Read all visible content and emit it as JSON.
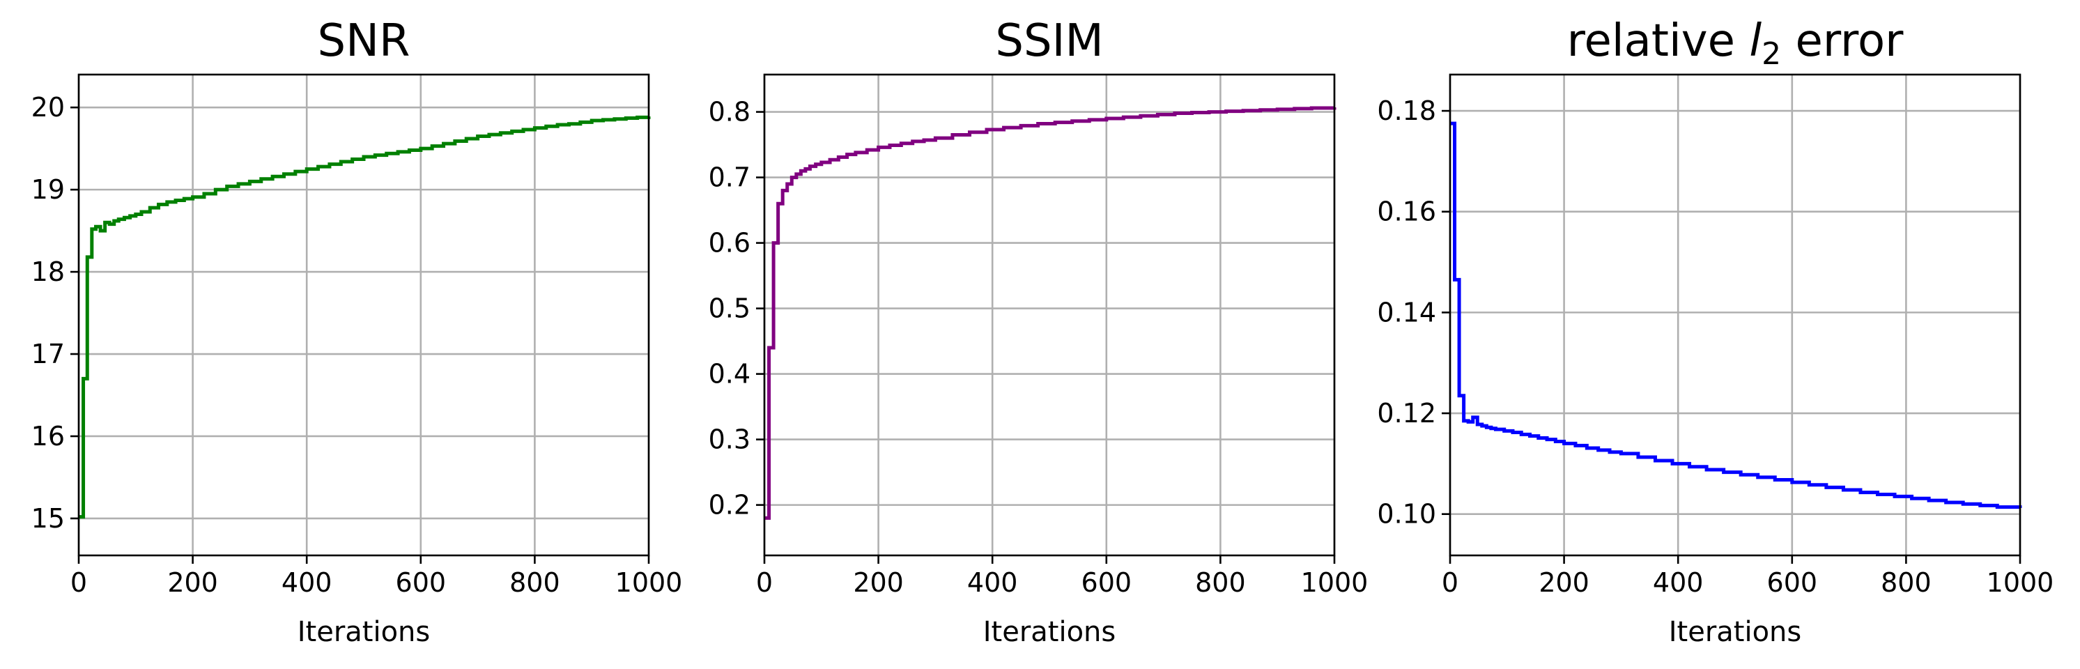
{
  "chart_data": [
    {
      "type": "line",
      "title": "SNR",
      "xlabel": "Iterations",
      "ylabel": "",
      "xlim": [
        0,
        1000
      ],
      "ylim": [
        14.55,
        20.4
      ],
      "xticks": [
        0,
        200,
        400,
        600,
        800,
        1000
      ],
      "yticks": [
        15,
        16,
        17,
        18,
        19,
        20
      ],
      "ytick_labels": [
        "15",
        "16",
        "17",
        "18",
        "19",
        "20"
      ],
      "grid": true,
      "series": [
        {
          "color": "#008000",
          "step": true,
          "x": [
            0,
            8,
            15,
            23,
            30,
            38,
            46,
            54,
            62,
            70,
            80,
            90,
            100,
            110,
            125,
            140,
            155,
            170,
            185,
            200,
            220,
            240,
            260,
            280,
            300,
            320,
            340,
            360,
            380,
            400,
            420,
            440,
            460,
            480,
            500,
            520,
            540,
            560,
            580,
            600,
            620,
            640,
            660,
            680,
            700,
            720,
            740,
            760,
            780,
            800,
            820,
            840,
            860,
            880,
            900,
            920,
            940,
            960,
            980,
            1000
          ],
          "y": [
            15.02,
            16.7,
            18.18,
            18.52,
            18.55,
            18.5,
            18.6,
            18.58,
            18.62,
            18.64,
            18.66,
            18.68,
            18.7,
            18.73,
            18.78,
            18.82,
            18.85,
            18.87,
            18.89,
            18.91,
            18.95,
            19.0,
            19.04,
            19.07,
            19.1,
            19.13,
            19.16,
            19.19,
            19.22,
            19.25,
            19.28,
            19.31,
            19.34,
            19.37,
            19.4,
            19.42,
            19.44,
            19.46,
            19.48,
            19.5,
            19.53,
            19.56,
            19.59,
            19.62,
            19.65,
            19.67,
            19.69,
            19.71,
            19.73,
            19.75,
            19.77,
            19.79,
            19.8,
            19.82,
            19.84,
            19.85,
            19.86,
            19.87,
            19.88,
            19.89
          ]
        }
      ]
    },
    {
      "type": "line",
      "title": "SSIM",
      "xlabel": "Iterations",
      "ylabel": "",
      "xlim": [
        0,
        1000
      ],
      "ylim": [
        0.123,
        0.857
      ],
      "xticks": [
        0,
        200,
        400,
        600,
        800,
        1000
      ],
      "yticks": [
        0.2,
        0.3,
        0.4,
        0.5,
        0.6,
        0.7,
        0.8
      ],
      "ytick_labels": [
        "0.2",
        "0.3",
        "0.4",
        "0.5",
        "0.6",
        "0.7",
        "0.8"
      ],
      "grid": true,
      "series": [
        {
          "color": "#800080",
          "step": true,
          "x": [
            0,
            8,
            16,
            24,
            32,
            40,
            48,
            56,
            64,
            72,
            80,
            90,
            100,
            115,
            130,
            145,
            160,
            180,
            200,
            220,
            240,
            260,
            280,
            300,
            330,
            360,
            390,
            420,
            450,
            480,
            510,
            540,
            570,
            600,
            630,
            660,
            690,
            720,
            750,
            780,
            810,
            840,
            870,
            900,
            930,
            960,
            1000
          ],
          "y": [
            0.18,
            0.44,
            0.6,
            0.66,
            0.68,
            0.69,
            0.7,
            0.705,
            0.71,
            0.713,
            0.717,
            0.72,
            0.723,
            0.727,
            0.731,
            0.735,
            0.738,
            0.742,
            0.746,
            0.749,
            0.752,
            0.755,
            0.757,
            0.76,
            0.765,
            0.769,
            0.773,
            0.776,
            0.779,
            0.782,
            0.784,
            0.786,
            0.788,
            0.79,
            0.792,
            0.794,
            0.796,
            0.798,
            0.799,
            0.8,
            0.801,
            0.802,
            0.803,
            0.804,
            0.805,
            0.806,
            0.807
          ]
        }
      ]
    },
    {
      "type": "line",
      "title": "relative",
      "title_var": "l",
      "title_sub": "2",
      "title_rest": "error",
      "xlabel": "Iterations",
      "ylabel": "",
      "xlim": [
        0,
        1000
      ],
      "ylim": [
        0.0918,
        0.1872
      ],
      "xticks": [
        0,
        200,
        400,
        600,
        800,
        1000
      ],
      "yticks": [
        0.1,
        0.12,
        0.14,
        0.16,
        0.18
      ],
      "ytick_labels": [
        "0.10",
        "0.12",
        "0.14",
        "0.16",
        "0.18"
      ],
      "grid": true,
      "series": [
        {
          "color": "#0000ff",
          "step": true,
          "x": [
            0,
            8,
            16,
            24,
            32,
            40,
            48,
            56,
            64,
            72,
            80,
            95,
            110,
            125,
            140,
            155,
            170,
            185,
            200,
            220,
            240,
            260,
            280,
            300,
            330,
            360,
            390,
            420,
            450,
            480,
            510,
            540,
            570,
            600,
            630,
            660,
            690,
            720,
            750,
            780,
            810,
            840,
            870,
            900,
            930,
            960,
            1000
          ],
          "y": [
            0.1775,
            0.1465,
            0.1235,
            0.1185,
            0.1183,
            0.1192,
            0.1178,
            0.1175,
            0.1172,
            0.117,
            0.1168,
            0.1165,
            0.1162,
            0.1158,
            0.1155,
            0.1151,
            0.1148,
            0.1144,
            0.114,
            0.1136,
            0.1131,
            0.1127,
            0.1123,
            0.112,
            0.1113,
            0.1106,
            0.11,
            0.1094,
            0.1088,
            0.1083,
            0.1078,
            0.1073,
            0.1068,
            0.1063,
            0.1058,
            0.1053,
            0.1048,
            0.1043,
            0.1039,
            0.1035,
            0.1031,
            0.1027,
            0.1023,
            0.102,
            0.1017,
            0.1014,
            0.1012
          ]
        }
      ]
    }
  ]
}
